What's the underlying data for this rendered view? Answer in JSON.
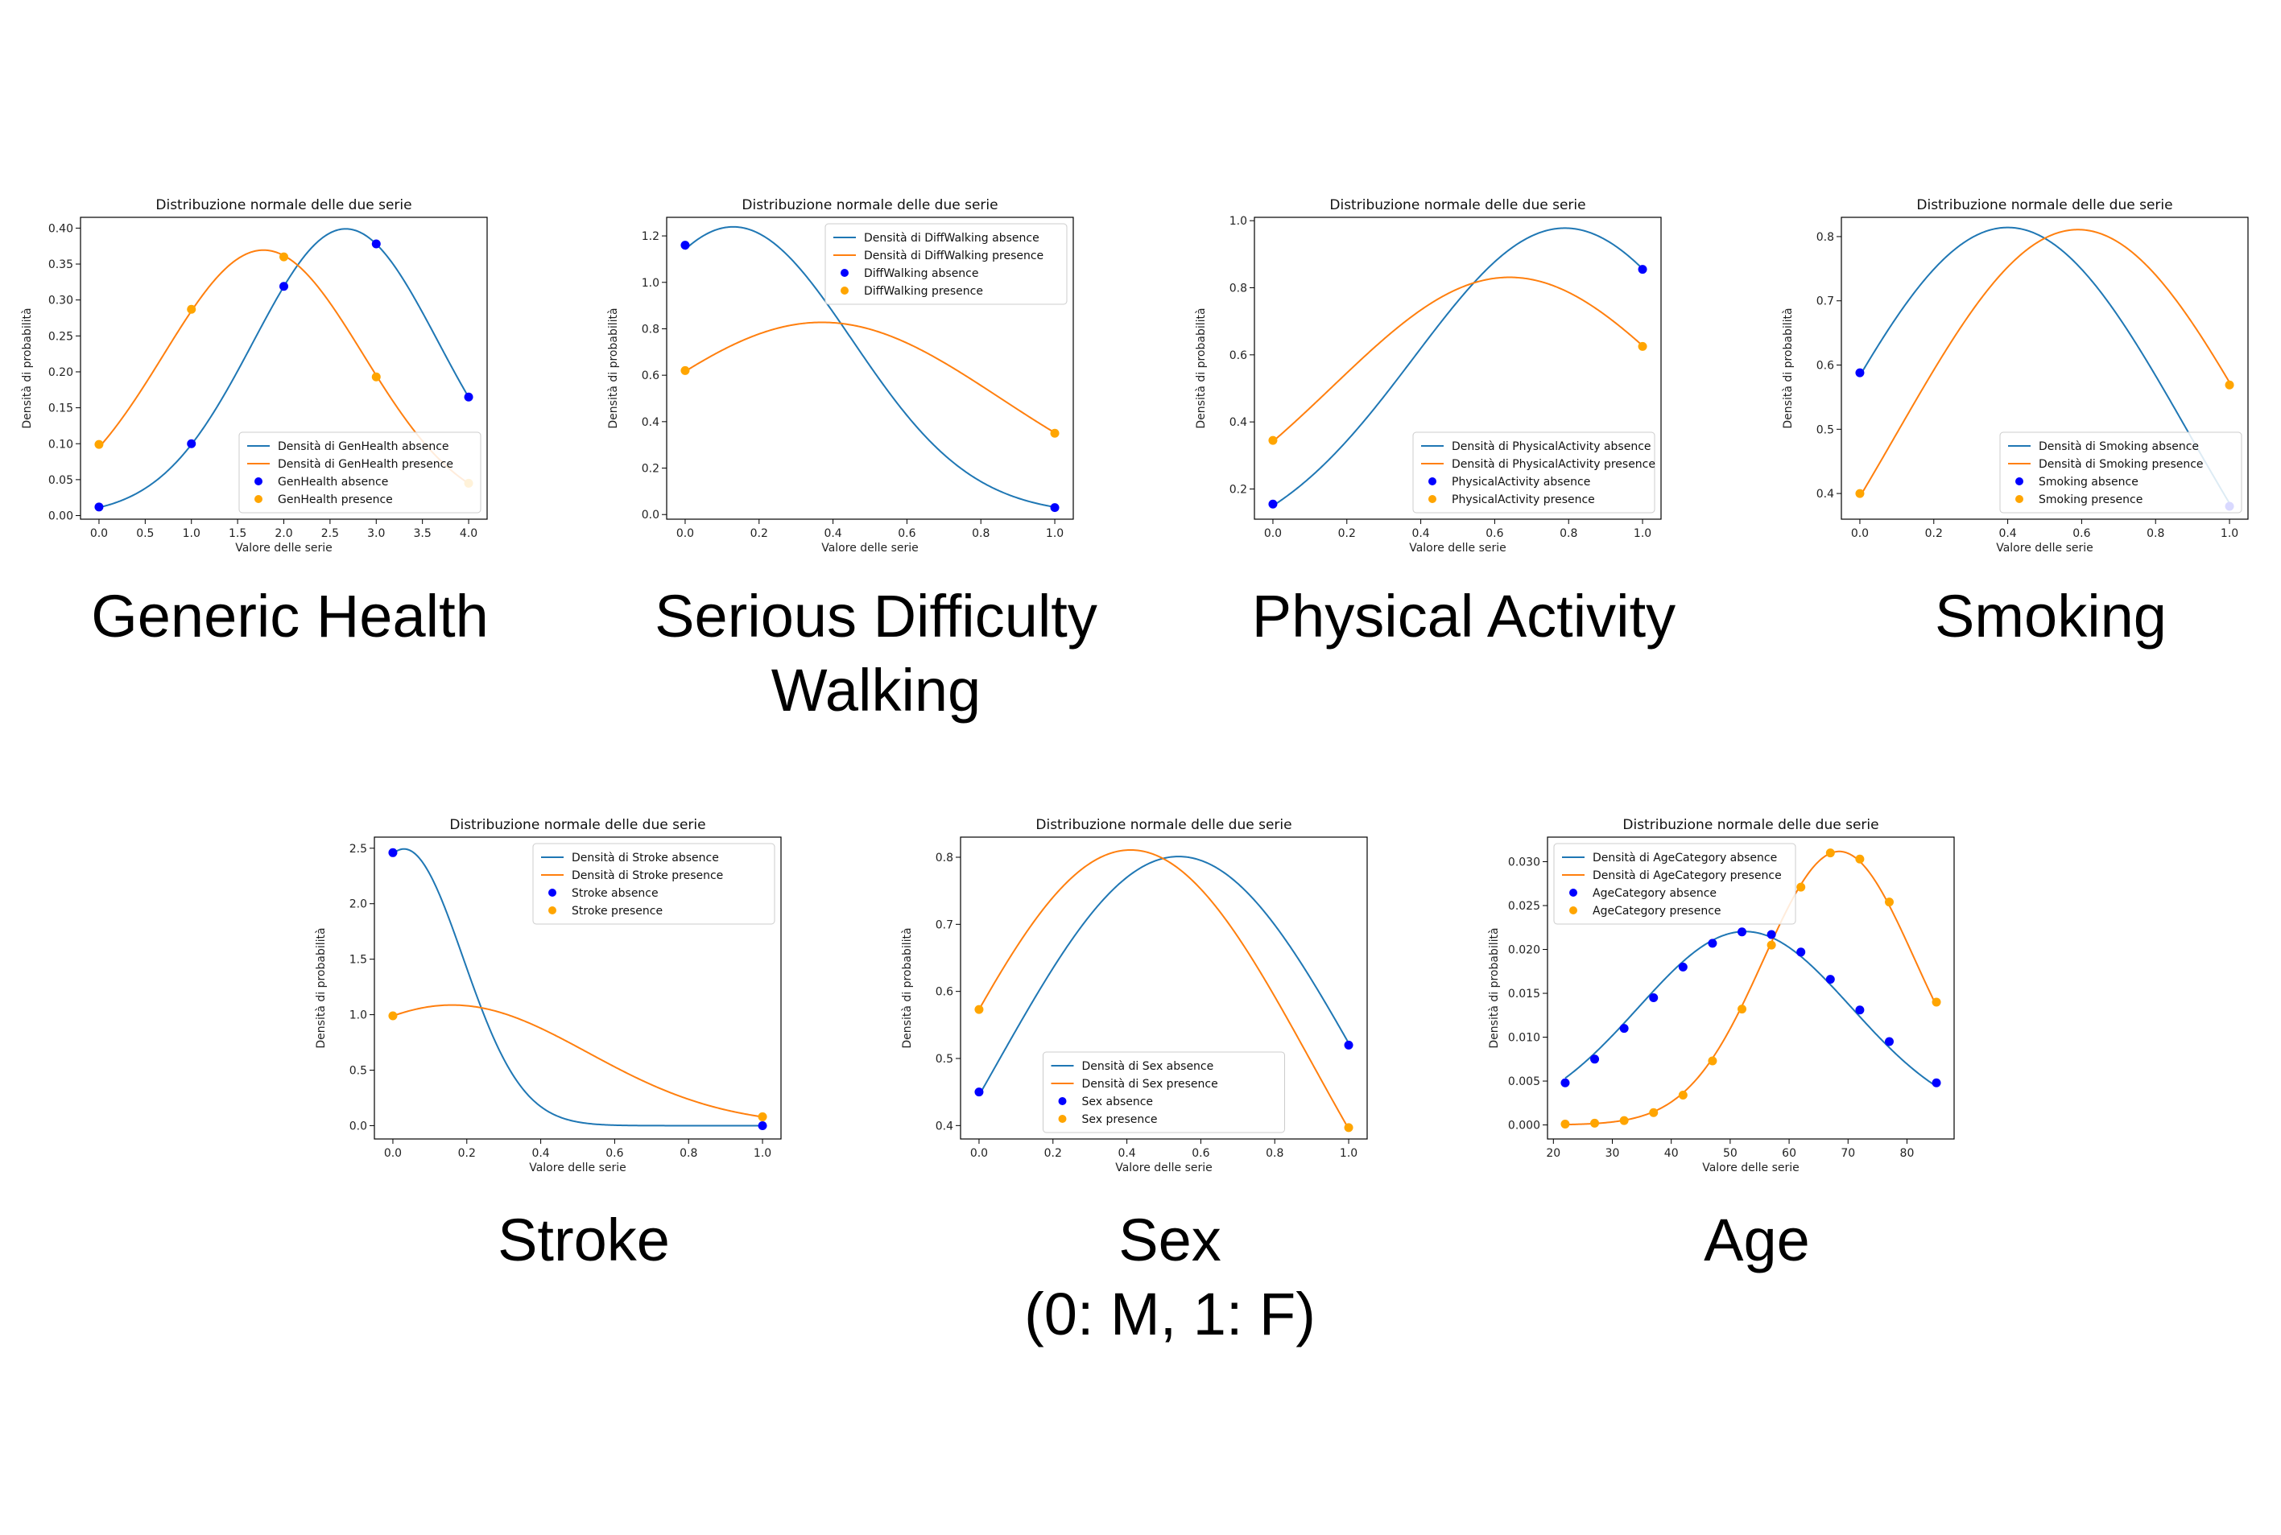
{
  "colors": {
    "absence_line": "#1f77b4",
    "presence_line": "#ff7f0e",
    "absence_point": "#0000ff",
    "presence_point": "#ffa500"
  },
  "chart_data": [
    {
      "type": "line",
      "caption": "Generic Health",
      "title": "Distribuzione normale delle due serie",
      "xlabel": "Valore delle serie",
      "ylabel": "Densità di probabilità",
      "xlim": [
        -0.2,
        4.2
      ],
      "ylim": [
        -0.005,
        0.415
      ],
      "xticks": [
        0,
        0.5,
        1,
        1.5,
        2,
        2.5,
        3,
        3.5,
        4
      ],
      "xtick_labels": [
        "0.0",
        "0.5",
        "1.0",
        "1.5",
        "2.0",
        "2.5",
        "3.0",
        "3.5",
        "4.0"
      ],
      "yticks": [
        0,
        0.05,
        0.1,
        0.15,
        0.2,
        0.25,
        0.3,
        0.35,
        0.4
      ],
      "ytick_labels": [
        "0.00",
        "0.05",
        "0.10",
        "0.15",
        "0.20",
        "0.25",
        "0.30",
        "0.35",
        "0.40"
      ],
      "legend": "lower right",
      "legend_labels": [
        "Densità di GenHealth absence",
        "Densità di GenHealth presence",
        "GenHealth absence",
        "GenHealth presence"
      ],
      "curves": [
        {
          "mean": 2.67,
          "sd": 1.0
        },
        {
          "mean": 1.78,
          "sd": 1.08
        }
      ],
      "points": [
        {
          "x": [
            0,
            1,
            2,
            3,
            4
          ],
          "y": [
            0.012,
            0.1,
            0.319,
            0.378,
            0.165
          ]
        },
        {
          "x": [
            0,
            1,
            2,
            3,
            4
          ],
          "y": [
            0.099,
            0.287,
            0.36,
            0.193,
            0.045
          ]
        }
      ]
    },
    {
      "type": "line",
      "caption": "Serious Difficulty\nWalking",
      "title": "Distribuzione normale delle due serie",
      "xlabel": "Valore delle serie",
      "ylabel": "Densità di probabilità",
      "xlim": [
        -0.05,
        1.05
      ],
      "ylim": [
        -0.02,
        1.28
      ],
      "xticks": [
        0,
        0.2,
        0.4,
        0.6,
        0.8,
        1
      ],
      "xtick_labels": [
        "0.0",
        "0.2",
        "0.4",
        "0.6",
        "0.8",
        "1.0"
      ],
      "yticks": [
        0,
        0.2,
        0.4,
        0.6,
        0.8,
        1.0,
        1.2
      ],
      "ytick_labels": [
        "0.0",
        "0.2",
        "0.4",
        "0.6",
        "0.8",
        "1.0",
        "1.2"
      ],
      "legend": "upper right",
      "legend_labels": [
        "Densità di DiffWalking absence",
        "Densità di DiffWalking presence",
        "DiffWalking absence",
        "DiffWalking presence"
      ],
      "curves": [
        {
          "mean": 0.13,
          "sd": 0.322
        },
        {
          "mean": 0.37,
          "sd": 0.482
        }
      ],
      "points": [
        {
          "x": [
            0,
            1
          ],
          "y": [
            1.16,
            0.03
          ]
        },
        {
          "x": [
            0,
            1
          ],
          "y": [
            0.62,
            0.35
          ]
        }
      ]
    },
    {
      "type": "line",
      "caption": "Physical Activity",
      "title": "Distribuzione normale delle due serie",
      "xlabel": "Valore delle serie",
      "ylabel": "Densità di probabilità",
      "xlim": [
        -0.05,
        1.05
      ],
      "ylim": [
        0.11,
        1.01
      ],
      "xticks": [
        0,
        0.2,
        0.4,
        0.6,
        0.8,
        1
      ],
      "xtick_labels": [
        "0.0",
        "0.2",
        "0.4",
        "0.6",
        "0.8",
        "1.0"
      ],
      "yticks": [
        0.2,
        0.4,
        0.6,
        0.8,
        1.0
      ],
      "ytick_labels": [
        "0.2",
        "0.4",
        "0.6",
        "0.8",
        "1.0"
      ],
      "legend": "lower right",
      "legend_labels": [
        "Densità di PhysicalActivity absence",
        "Densità di PhysicalActivity presence",
        "PhysicalActivity absence",
        "PhysicalActivity presence"
      ],
      "curves": [
        {
          "mean": 0.79,
          "sd": 0.408
        },
        {
          "mean": 0.64,
          "sd": 0.48
        }
      ],
      "points": [
        {
          "x": [
            0,
            1
          ],
          "y": [
            0.155,
            0.855
          ]
        },
        {
          "x": [
            0,
            1
          ],
          "y": [
            0.345,
            0.625
          ]
        }
      ]
    },
    {
      "type": "line",
      "caption": "Smoking",
      "title": "Distribuzione normale delle due serie",
      "xlabel": "Valore delle serie",
      "ylabel": "Densità di probabilità",
      "xlim": [
        -0.05,
        1.05
      ],
      "ylim": [
        0.36,
        0.83
      ],
      "xticks": [
        0,
        0.2,
        0.4,
        0.6,
        0.8,
        1
      ],
      "xtick_labels": [
        "0.0",
        "0.2",
        "0.4",
        "0.6",
        "0.8",
        "1.0"
      ],
      "yticks": [
        0.4,
        0.5,
        0.6,
        0.7,
        0.8
      ],
      "ytick_labels": [
        "0.4",
        "0.5",
        "0.6",
        "0.7",
        "0.8"
      ],
      "legend": "lower right",
      "legend_labels": [
        "Densità di Smoking absence",
        "Densità di Smoking presence",
        "Smoking absence",
        "Smoking presence"
      ],
      "curves": [
        {
          "mean": 0.4,
          "sd": 0.49
        },
        {
          "mean": 0.59,
          "sd": 0.492
        }
      ],
      "points": [
        {
          "x": [
            0,
            1
          ],
          "y": [
            0.588,
            0.38
          ]
        },
        {
          "x": [
            0,
            1
          ],
          "y": [
            0.4,
            0.569
          ]
        }
      ]
    },
    {
      "type": "line",
      "caption": "Stroke",
      "title": "Distribuzione normale delle due serie",
      "xlabel": "Valore delle serie",
      "ylabel": "Densità di probabilità",
      "xlim": [
        -0.05,
        1.05
      ],
      "ylim": [
        -0.12,
        2.6
      ],
      "xticks": [
        0,
        0.2,
        0.4,
        0.6,
        0.8,
        1
      ],
      "xtick_labels": [
        "0.0",
        "0.2",
        "0.4",
        "0.6",
        "0.8",
        "1.0"
      ],
      "yticks": [
        0,
        0.5,
        1.0,
        1.5,
        2.0,
        2.5
      ],
      "ytick_labels": [
        "0.0",
        "0.5",
        "1.0",
        "1.5",
        "2.0",
        "2.5"
      ],
      "legend": "upper right",
      "legend_labels": [
        "Densità di Stroke absence",
        "Densità di Stroke presence",
        "Stroke absence",
        "Stroke presence"
      ],
      "curves": [
        {
          "mean": 0.03,
          "sd": 0.16
        },
        {
          "mean": 0.16,
          "sd": 0.367
        }
      ],
      "points": [
        {
          "x": [
            0,
            1
          ],
          "y": [
            2.46,
            0.0
          ]
        },
        {
          "x": [
            0,
            1
          ],
          "y": [
            0.99,
            0.08
          ]
        }
      ]
    },
    {
      "type": "line",
      "caption": "Sex\n(0: M, 1: F)",
      "title": "Distribuzione normale delle due serie",
      "xlabel": "Valore delle serie",
      "ylabel": "Densità di probabilità",
      "xlim": [
        -0.05,
        1.05
      ],
      "ylim": [
        0.38,
        0.83
      ],
      "xticks": [
        0,
        0.2,
        0.4,
        0.6,
        0.8,
        1
      ],
      "xtick_labels": [
        "0.0",
        "0.2",
        "0.4",
        "0.6",
        "0.8",
        "1.0"
      ],
      "yticks": [
        0.4,
        0.5,
        0.6,
        0.7,
        0.8
      ],
      "ytick_labels": [
        "0.4",
        "0.5",
        "0.6",
        "0.7",
        "0.8"
      ],
      "legend": "lower center",
      "legend_labels": [
        "Densità di Sex absence",
        "Densità di Sex presence",
        "Sex absence",
        "Sex presence"
      ],
      "curves": [
        {
          "mean": 0.54,
          "sd": 0.498
        },
        {
          "mean": 0.41,
          "sd": 0.492
        }
      ],
      "points": [
        {
          "x": [
            0,
            1
          ],
          "y": [
            0.45,
            0.52
          ]
        },
        {
          "x": [
            0,
            1
          ],
          "y": [
            0.573,
            0.397
          ]
        }
      ]
    },
    {
      "type": "line",
      "caption": "Age",
      "title": "Distribuzione normale delle due serie",
      "xlabel": "Valore delle serie",
      "ylabel": "Densità di probabilità",
      "xlim": [
        19,
        88
      ],
      "ylim": [
        -0.0016,
        0.0328
      ],
      "xticks": [
        20,
        30,
        40,
        50,
        60,
        70,
        80
      ],
      "xtick_labels": [
        "20",
        "30",
        "40",
        "50",
        "60",
        "70",
        "80"
      ],
      "yticks": [
        0,
        0.005,
        0.01,
        0.015,
        0.02,
        0.025,
        0.03
      ],
      "ytick_labels": [
        "0.000",
        "0.005",
        "0.010",
        "0.015",
        "0.020",
        "0.025",
        "0.030"
      ],
      "legend": "upper left",
      "legend_labels": [
        "Densità di AgeCategory absence",
        "Densità di AgeCategory presence",
        "AgeCategory absence",
        "AgeCategory presence"
      ],
      "curves": [
        {
          "mean": 52.5,
          "sd": 18.1
        },
        {
          "mean": 68.5,
          "sd": 12.8
        }
      ],
      "points": [
        {
          "x": [
            22,
            27,
            32,
            37,
            42,
            47,
            52,
            57,
            62,
            67,
            72,
            77,
            85
          ],
          "y": [
            0.0048,
            0.0075,
            0.011,
            0.0145,
            0.018,
            0.0207,
            0.022,
            0.0217,
            0.0197,
            0.0166,
            0.0131,
            0.0095,
            0.0048
          ]
        },
        {
          "x": [
            22,
            27,
            32,
            37,
            42,
            47,
            52,
            57,
            62,
            67,
            72,
            77,
            85
          ],
          "y": [
            0.0001,
            0.0002,
            0.0005,
            0.0014,
            0.0034,
            0.0073,
            0.0132,
            0.0205,
            0.0271,
            0.031,
            0.0303,
            0.0254,
            0.014
          ]
        }
      ]
    }
  ]
}
